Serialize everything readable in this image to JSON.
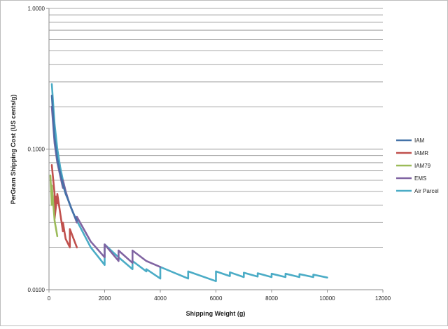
{
  "chart_data": {
    "type": "line",
    "title": "",
    "xlabel": "Shipping Weight (g)",
    "ylabel": "PerGram Shipping Cost (US cents/g)",
    "xlim": [
      0,
      12000
    ],
    "ylim": [
      0.01,
      1
    ],
    "y_scale": "log",
    "x_ticks": [
      0,
      2000,
      4000,
      6000,
      8000,
      10000,
      12000
    ],
    "x_tick_labels": [
      "0",
      "2000",
      "4000",
      "6000",
      "8000",
      "10000",
      "12000"
    ],
    "y_ticks": [
      0.01,
      0.1,
      1
    ],
    "y_tick_labels": [
      "0.0100",
      "0.1000",
      "1.0000"
    ],
    "grid": "horizontal",
    "legend": "right",
    "series": [
      {
        "name": "IAM",
        "color": "#4472A8",
        "x": [
          100,
          200,
          300,
          400,
          500,
          600,
          700,
          800,
          900,
          1000
        ],
        "y": [
          0.24,
          0.12,
          0.085,
          0.068,
          0.056,
          0.048,
          0.043,
          0.038,
          0.034,
          0.031
        ]
      },
      {
        "name": "IAMR",
        "color": "#C0504D",
        "x": [
          100,
          200,
          200,
          250,
          250,
          300,
          300,
          500,
          500,
          600,
          750,
          750,
          1000
        ],
        "y": [
          0.077,
          0.048,
          0.032,
          0.039,
          0.046,
          0.041,
          0.048,
          0.026,
          0.03,
          0.023,
          0.02,
          0.027,
          0.02
        ]
      },
      {
        "name": "IAM79",
        "color": "#9BBB59",
        "x": [
          50,
          100,
          100,
          200,
          300
        ],
        "y": [
          0.065,
          0.04,
          0.055,
          0.031,
          0.024
        ]
      },
      {
        "name": "EMS",
        "color": "#8064A2",
        "x": [
          100,
          200,
          300,
          400,
          500,
          500,
          600,
          700,
          800,
          900,
          1000,
          1000,
          1500,
          2000,
          2000,
          2500,
          2500,
          3000,
          3000,
          3500,
          4000
        ],
        "y": [
          0.2,
          0.11,
          0.08,
          0.065,
          0.053,
          0.06,
          0.05,
          0.043,
          0.038,
          0.034,
          0.03,
          0.033,
          0.022,
          0.017,
          0.021,
          0.016,
          0.019,
          0.0155,
          0.019,
          0.016,
          0.0145
        ]
      },
      {
        "name": "Air Parcel",
        "color": "#4BACC6",
        "x": [
          100,
          200,
          300,
          400,
          500,
          600,
          700,
          800,
          900,
          1000,
          1500,
          2000,
          2000,
          2500,
          3000,
          3000,
          3500,
          3500,
          4000,
          4000,
          5000,
          5000,
          6000,
          6000,
          6500,
          6500,
          7000,
          7000,
          7500,
          7500,
          8000,
          8000,
          8500,
          8500,
          9000,
          9000,
          9500,
          9500,
          10000
        ],
        "y": [
          0.29,
          0.15,
          0.1,
          0.075,
          0.06,
          0.05,
          0.043,
          0.038,
          0.034,
          0.031,
          0.02,
          0.015,
          0.021,
          0.017,
          0.014,
          0.016,
          0.0135,
          0.014,
          0.012,
          0.0145,
          0.012,
          0.0135,
          0.0115,
          0.0135,
          0.0125,
          0.0133,
          0.0123,
          0.0132,
          0.0124,
          0.0131,
          0.0123,
          0.013,
          0.0123,
          0.013,
          0.0123,
          0.0129,
          0.0123,
          0.0128,
          0.0122
        ]
      }
    ]
  }
}
